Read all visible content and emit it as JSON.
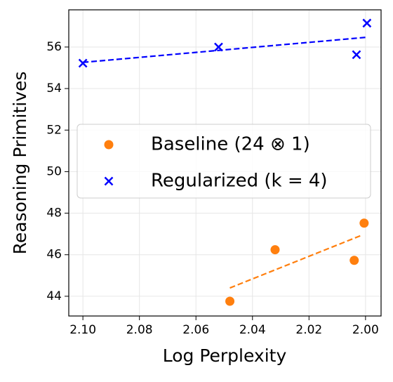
{
  "chart_data": {
    "type": "scatter",
    "xlabel": "Log Perplexity",
    "ylabel": "Reasoning Primitives",
    "xlim": [
      2.105,
      1.9945
    ],
    "ylim": [
      43.05,
      57.79
    ],
    "xticks": [
      {
        "value": 2.1,
        "label": "2.10"
      },
      {
        "value": 2.08,
        "label": "2.08"
      },
      {
        "value": 2.06,
        "label": "2.06"
      },
      {
        "value": 2.04,
        "label": "2.04"
      },
      {
        "value": 2.02,
        "label": "2.02"
      },
      {
        "value": 2.0,
        "label": "2.00"
      }
    ],
    "yticks": [
      44,
      46,
      48,
      50,
      52,
      54,
      56
    ],
    "grid": true,
    "legend": "center left",
    "series": [
      {
        "name": "Baseline (24 ⊗ 1)",
        "color": "#ff7f0e",
        "marker": "circle",
        "x": [
          2.048,
          2.032,
          2.004,
          2.0005
        ],
        "values": [
          43.76,
          46.24,
          45.73,
          47.52
        ],
        "trend": {
          "x": [
            2.048,
            2.0015
          ],
          "y": [
            44.4,
            46.93
          ]
        }
      },
      {
        "name": "Regularized (k = 4)",
        "color": "#0000ff",
        "marker": "x",
        "x": [
          2.1,
          2.052,
          2.0032,
          1.9995
        ],
        "values": [
          55.22,
          56.0,
          55.63,
          57.15
        ],
        "trend": {
          "x": [
            2.1,
            1.9995
          ],
          "y": [
            55.26,
            56.47
          ]
        }
      }
    ]
  }
}
